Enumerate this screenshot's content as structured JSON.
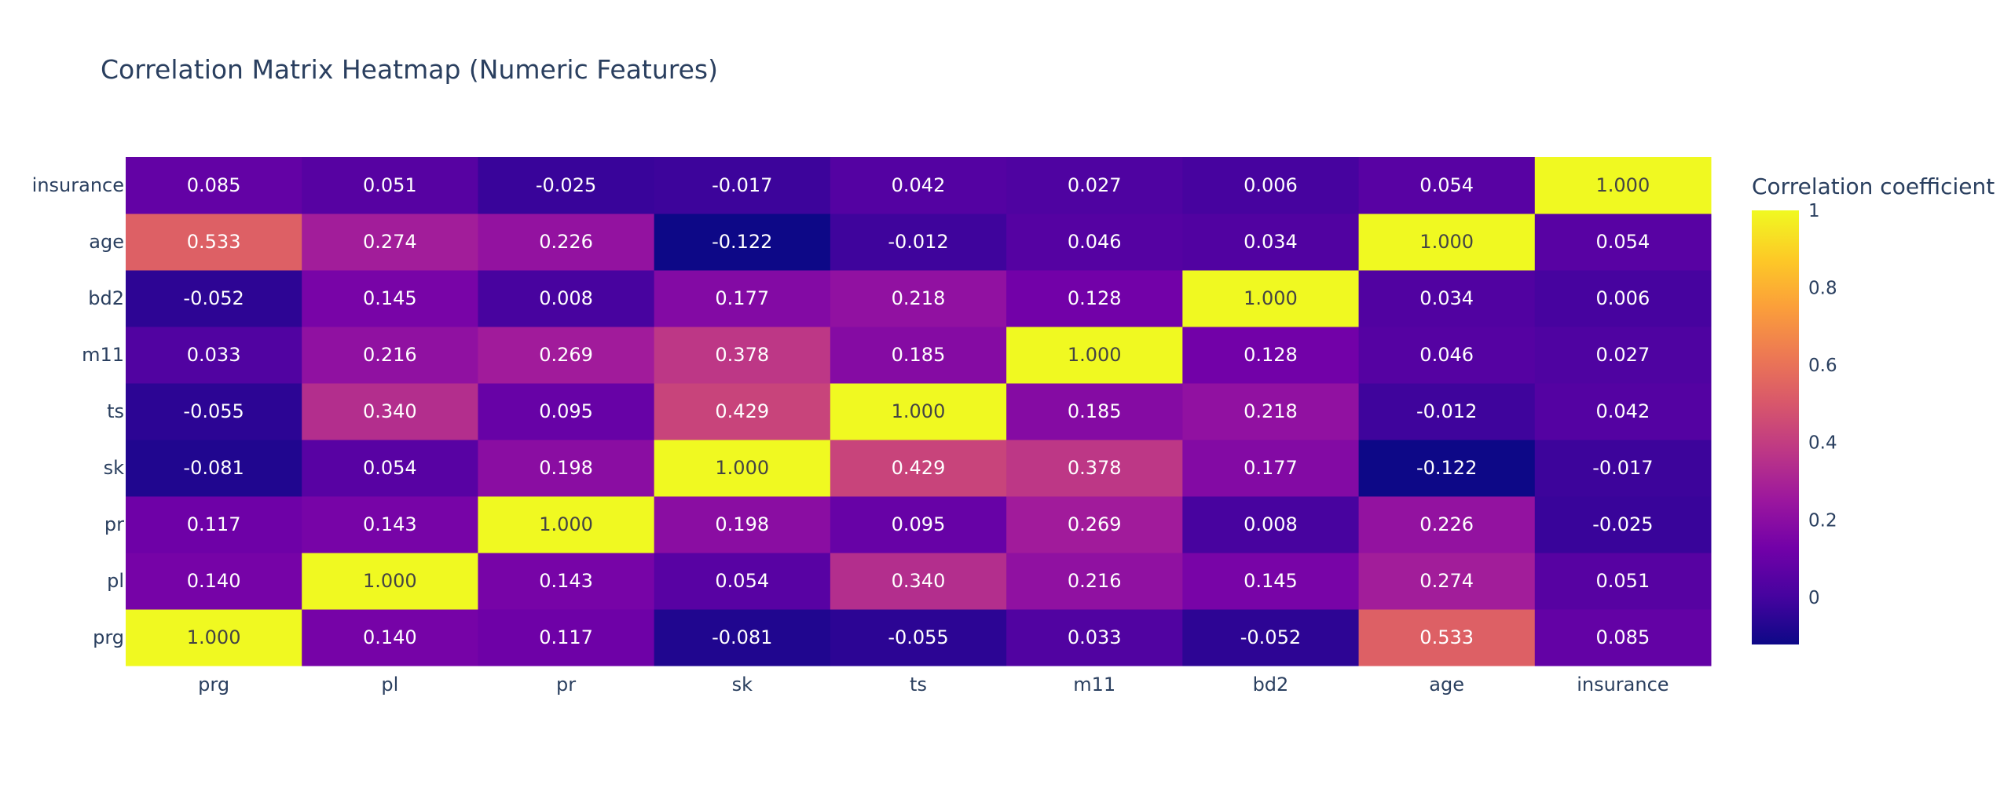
{
  "chart_data": {
    "type": "heatmap",
    "title": "Correlation Matrix Heatmap (Numeric Features)",
    "x_categories": [
      "prg",
      "pl",
      "pr",
      "sk",
      "ts",
      "m11",
      "bd2",
      "age",
      "insurance"
    ],
    "y_categories": [
      "prg",
      "pl",
      "pr",
      "sk",
      "ts",
      "m11",
      "bd2",
      "age",
      "insurance"
    ],
    "z": [
      [
        1.0,
        0.14,
        0.117,
        -0.081,
        -0.055,
        0.033,
        -0.052,
        0.533,
        0.085
      ],
      [
        0.14,
        1.0,
        0.143,
        0.054,
        0.34,
        0.216,
        0.145,
        0.274,
        0.051
      ],
      [
        0.117,
        0.143,
        1.0,
        0.198,
        0.095,
        0.269,
        0.008,
        0.226,
        -0.025
      ],
      [
        -0.081,
        0.054,
        0.198,
        1.0,
        0.429,
        0.378,
        0.177,
        -0.122,
        -0.017
      ],
      [
        -0.055,
        0.34,
        0.095,
        0.429,
        1.0,
        0.185,
        0.218,
        -0.012,
        0.042
      ],
      [
        0.033,
        0.216,
        0.269,
        0.378,
        0.185,
        1.0,
        0.128,
        0.046,
        0.027
      ],
      [
        -0.052,
        0.145,
        0.008,
        0.177,
        0.218,
        0.128,
        1.0,
        0.034,
        0.006
      ],
      [
        0.533,
        0.274,
        0.226,
        -0.122,
        -0.012,
        0.046,
        0.034,
        1.0,
        0.054
      ],
      [
        0.085,
        0.051,
        -0.025,
        -0.017,
        0.042,
        0.027,
        0.006,
        0.054,
        1.0
      ]
    ],
    "colorscale": "Plasma",
    "zmin": -0.122,
    "zmax": 1.0,
    "colorbar": {
      "title": "Correlation coefficient",
      "ticks": [
        0,
        0.2,
        0.4,
        0.6,
        0.8,
        1
      ]
    },
    "text_format": "3 decimals"
  }
}
